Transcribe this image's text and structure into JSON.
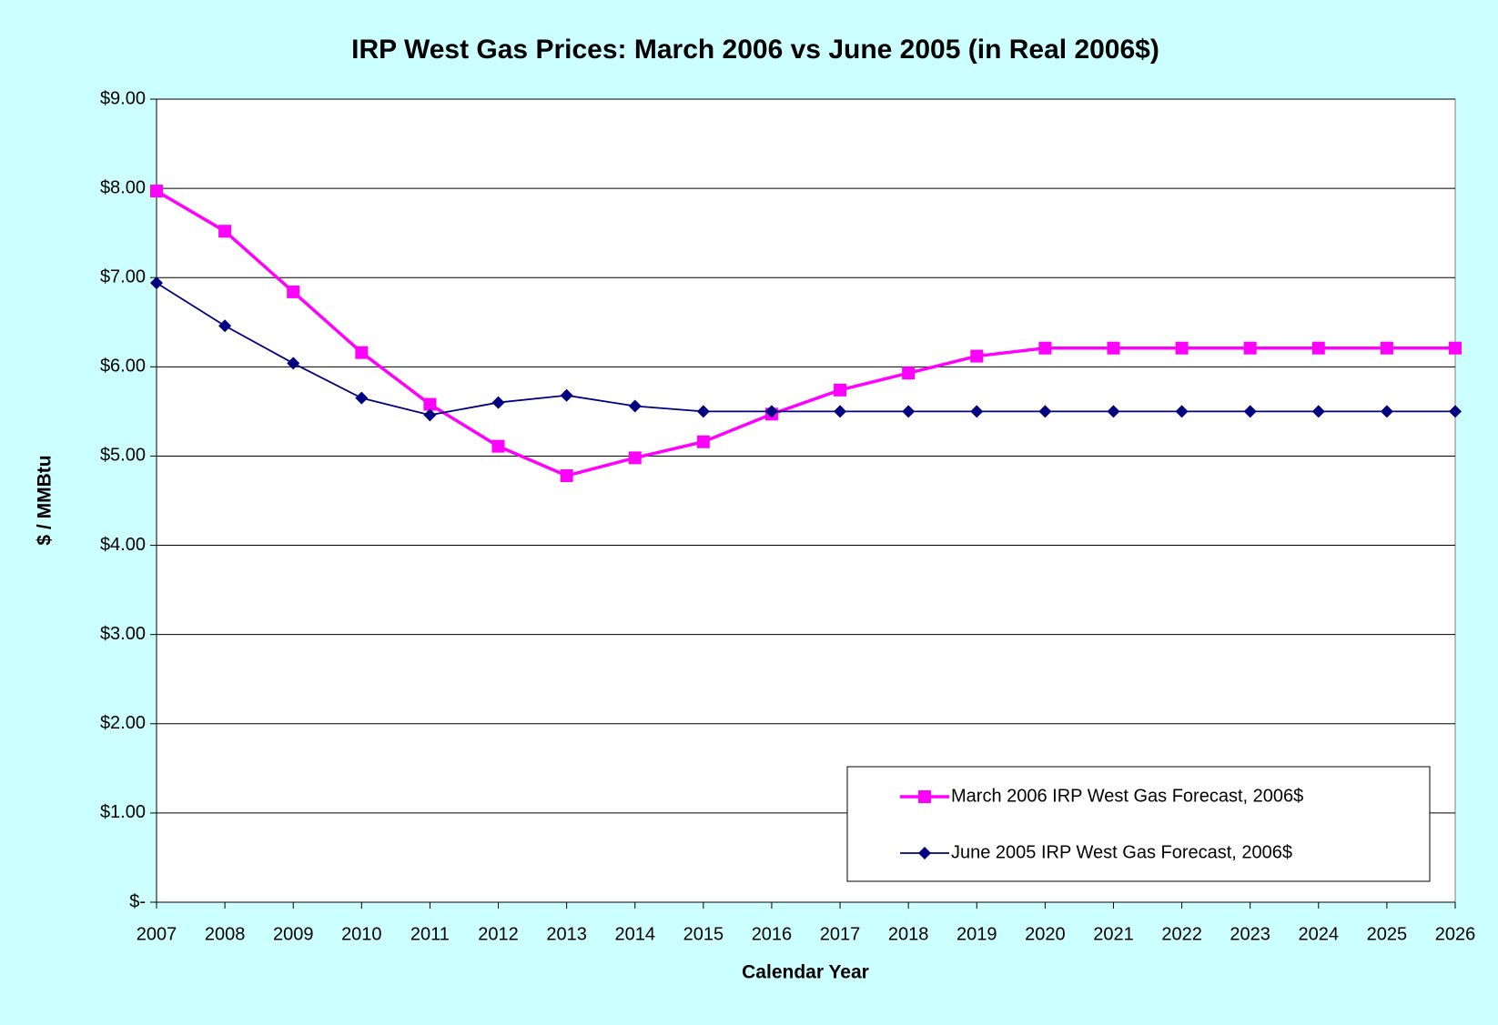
{
  "chart_data": {
    "type": "line",
    "title": "IRP West Gas Prices:  March 2006 vs June 2005 (in Real 2006$)",
    "x_label": "Calendar Year",
    "y_label": "$ / MMBtu",
    "x": [
      2007,
      2008,
      2009,
      2010,
      2011,
      2012,
      2013,
      2014,
      2015,
      2016,
      2017,
      2018,
      2019,
      2020,
      2021,
      2022,
      2023,
      2024,
      2025,
      2026
    ],
    "xlim": [
      2007,
      2026
    ],
    "xticks": [
      2007,
      2008,
      2009,
      2010,
      2011,
      2012,
      2013,
      2014,
      2015,
      2016,
      2017,
      2018,
      2019,
      2020,
      2021,
      2022,
      2023,
      2024,
      2025,
      2026
    ],
    "ylim": [
      0,
      9
    ],
    "yticks": [
      {
        "value": 0,
        "label": "$-"
      },
      {
        "value": 1,
        "label": "$1.00"
      },
      {
        "value": 2,
        "label": "$2.00"
      },
      {
        "value": 3,
        "label": "$3.00"
      },
      {
        "value": 4,
        "label": "$4.00"
      },
      {
        "value": 5,
        "label": "$5.00"
      },
      {
        "value": 6,
        "label": "$6.00"
      },
      {
        "value": 7,
        "label": "$7.00"
      },
      {
        "value": 8,
        "label": "$8.00"
      },
      {
        "value": 9,
        "label": "$9.00"
      }
    ],
    "grid": true,
    "legend": "lower right",
    "series": [
      {
        "name": "March 2006 IRP West Gas Forecast, 2006$",
        "color": "#ff00ff",
        "marker": "square",
        "values": [
          7.97,
          7.52,
          6.84,
          6.16,
          5.58,
          5.11,
          4.78,
          4.98,
          5.16,
          5.47,
          5.74,
          5.93,
          6.12,
          6.21,
          6.21,
          6.21,
          6.21,
          6.21,
          6.21,
          6.21
        ]
      },
      {
        "name": "June 2005 IRP West Gas Forecast, 2006$",
        "color": "#000080",
        "marker": "diamond",
        "values": [
          6.94,
          6.46,
          6.04,
          5.65,
          5.46,
          5.6,
          5.68,
          5.56,
          5.5,
          5.5,
          5.5,
          5.5,
          5.5,
          5.5,
          5.5,
          5.5,
          5.5,
          5.5,
          5.5,
          5.5
        ]
      }
    ]
  }
}
